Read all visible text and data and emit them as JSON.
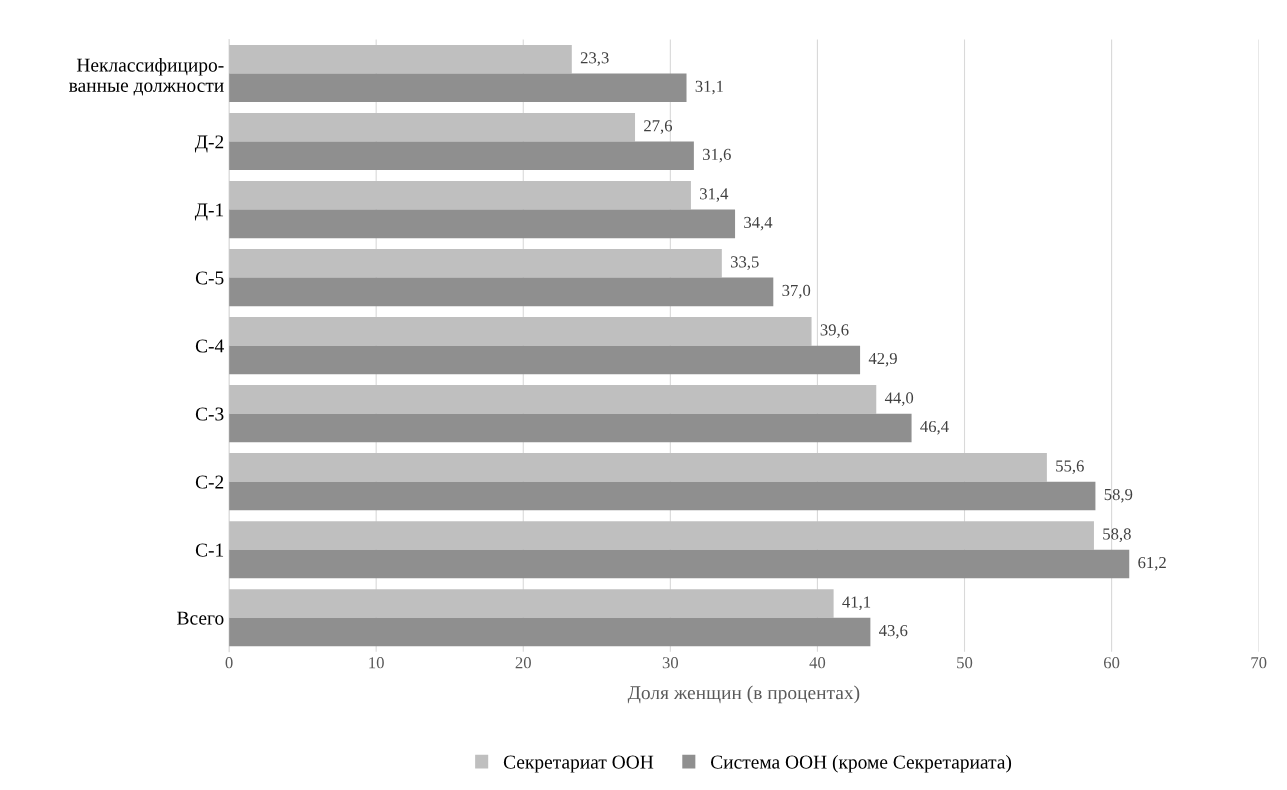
{
  "chart_data": {
    "type": "bar",
    "orientation": "horizontal",
    "categories": [
      "Неклассифициро-\nванные должности",
      "Д-2",
      "Д-1",
      "С-5",
      "С-4",
      "С-3",
      "С-2",
      "С-1",
      "Всего"
    ],
    "series": [
      {
        "name": "Секретариат ООН",
        "color": "#bfbfbf",
        "values": [
          23.3,
          27.6,
          31.4,
          33.5,
          39.6,
          44.0,
          55.6,
          58.8,
          41.1
        ],
        "value_labels": [
          "23,3",
          "27,6",
          "31,4",
          "33,5",
          "39,6",
          "44,0",
          "55,6",
          "58,8",
          "41,1"
        ]
      },
      {
        "name": "Система ООН (кроме Секретариата)",
        "color": "#8f8f8f",
        "values": [
          31.1,
          31.6,
          34.4,
          37.0,
          42.9,
          46.4,
          58.9,
          61.2,
          43.6
        ],
        "value_labels": [
          "31,1",
          "31,6",
          "34,4",
          "37,0",
          "42,9",
          "46,4",
          "58,9",
          "61,2",
          "43,6"
        ]
      }
    ],
    "xlabel": "Доля женщин (в процентах)",
    "xlim": [
      0,
      70
    ],
    "xticks": [
      0,
      10,
      20,
      30,
      40,
      50,
      60,
      70
    ],
    "grid": "x",
    "legend": "bottom"
  }
}
